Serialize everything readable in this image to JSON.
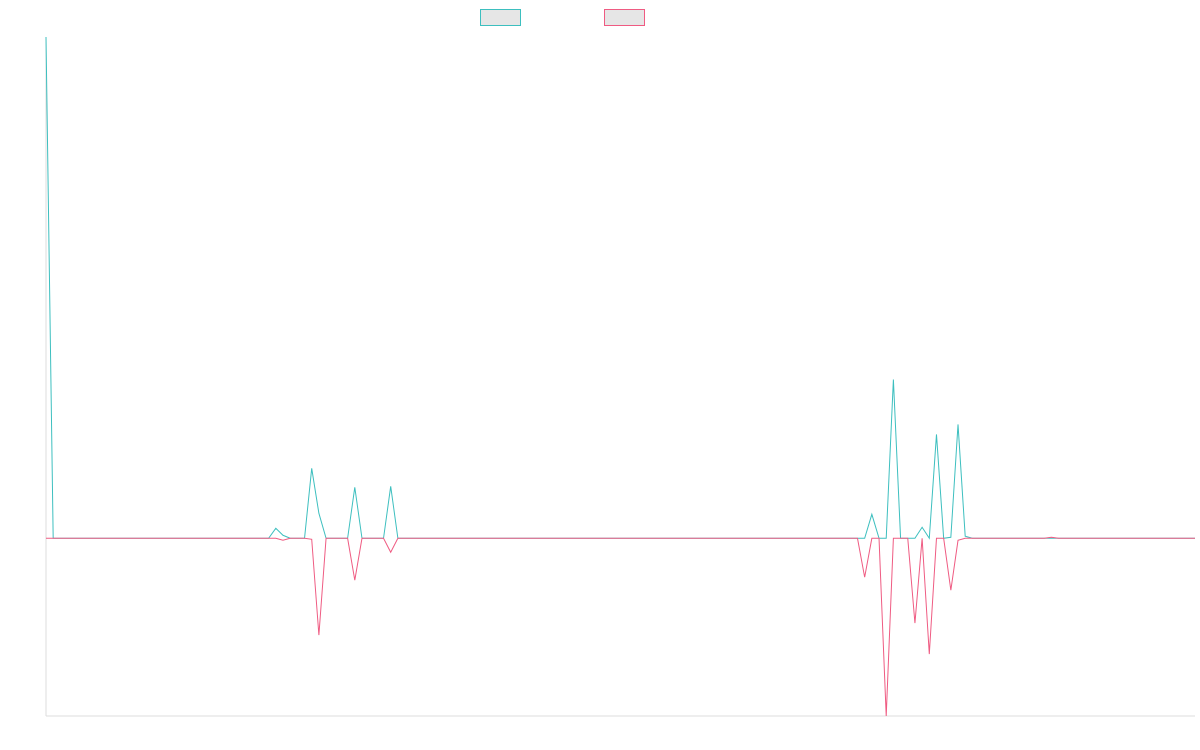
{
  "chart_data": {
    "type": "line",
    "title": "",
    "xlabel": "",
    "ylabel": "",
    "grid": false,
    "legend_position": "top-center",
    "ylim": [
      -178,
      502
    ],
    "x": [
      0,
      1,
      2,
      3,
      4,
      5,
      6,
      7,
      8,
      9,
      10,
      11,
      12,
      13,
      14,
      15,
      16,
      17,
      18,
      19,
      20,
      21,
      22,
      23,
      24,
      25,
      26,
      27,
      28,
      29,
      30,
      31,
      32,
      33,
      34,
      35,
      36,
      37,
      38,
      39,
      40,
      41,
      42,
      43,
      44,
      45,
      46,
      47,
      48,
      49,
      50,
      51,
      52,
      53,
      54,
      55,
      56,
      57,
      58,
      59,
      60,
      61,
      62,
      63,
      64,
      65,
      66,
      67,
      68,
      69,
      70,
      71,
      72,
      73,
      74,
      75,
      76,
      77,
      78,
      79,
      80,
      81,
      82,
      83,
      84,
      85,
      86,
      87,
      88,
      89,
      90,
      91,
      92,
      93,
      94,
      95,
      96,
      97,
      98,
      99,
      100,
      101,
      102,
      103,
      104,
      105,
      106,
      107,
      108,
      109,
      110,
      111,
      112,
      113,
      114,
      115,
      116,
      117,
      118,
      119,
      120,
      121,
      122,
      123,
      124,
      125,
      126,
      127,
      128,
      129,
      130,
      131,
      132,
      133,
      134,
      135,
      136,
      137,
      138,
      139,
      140,
      141,
      142,
      143,
      144,
      145,
      146,
      147,
      148,
      149,
      150,
      151,
      152,
      153,
      154,
      155,
      156,
      157,
      158,
      159,
      160
    ],
    "series": [
      {
        "color": "#3dbfbf",
        "values": [
          502,
          0,
          0,
          0,
          0,
          0,
          0,
          0,
          0,
          0,
          0,
          0,
          0,
          0,
          0,
          0,
          0,
          0,
          0,
          0,
          0,
          0,
          0,
          0,
          0,
          0,
          0,
          0,
          0,
          0,
          0,
          0,
          10,
          3,
          0,
          0,
          0,
          70,
          25,
          0,
          0,
          0,
          0,
          51,
          0,
          0,
          0,
          0,
          52,
          0,
          0,
          0,
          0,
          0,
          0,
          0,
          0,
          0,
          0,
          0,
          0,
          0,
          0,
          0,
          0,
          0,
          0,
          0,
          0,
          0,
          0,
          0,
          0,
          0,
          0,
          0,
          0,
          0,
          0,
          0,
          0,
          0,
          0,
          0,
          0,
          0,
          0,
          0,
          0,
          0,
          0,
          0,
          0,
          0,
          0,
          0,
          0,
          0,
          0,
          0,
          0,
          0,
          0,
          0,
          0,
          0,
          0,
          0,
          0,
          0,
          0,
          0,
          0,
          0,
          0,
          24,
          0,
          0,
          159,
          0,
          0,
          0,
          11,
          0,
          104,
          0,
          1,
          114,
          2,
          0,
          0,
          0,
          0,
          0,
          0,
          0,
          0,
          0,
          0,
          0,
          0,
          0,
          0,
          0,
          0,
          0,
          0,
          0,
          0,
          0,
          0,
          0,
          0,
          0,
          0,
          0,
          0,
          0,
          0,
          0,
          0
        ]
      },
      {
        "color": "#ef5b82",
        "values": [
          0,
          0,
          0,
          0,
          0,
          0,
          0,
          0,
          0,
          0,
          0,
          0,
          0,
          0,
          0,
          0,
          0,
          0,
          0,
          0,
          0,
          0,
          0,
          0,
          0,
          0,
          0,
          0,
          0,
          0,
          0,
          0,
          0,
          -2,
          0,
          0,
          0,
          -1,
          -97,
          0,
          0,
          0,
          0,
          -42,
          0,
          0,
          0,
          0,
          -14,
          0,
          0,
          0,
          0,
          0,
          0,
          0,
          0,
          0,
          0,
          0,
          0,
          0,
          0,
          0,
          0,
          0,
          0,
          0,
          0,
          0,
          0,
          0,
          0,
          0,
          0,
          0,
          0,
          0,
          0,
          0,
          0,
          0,
          0,
          0,
          0,
          0,
          0,
          0,
          0,
          0,
          0,
          0,
          0,
          0,
          0,
          0,
          0,
          0,
          0,
          0,
          0,
          0,
          0,
          0,
          0,
          0,
          0,
          0,
          0,
          0,
          0,
          0,
          0,
          0,
          -39,
          0,
          0,
          -178,
          0,
          0,
          0,
          -85,
          0,
          -116,
          0,
          0,
          -52,
          -2,
          0,
          0,
          0,
          0,
          0,
          0,
          0,
          0,
          0,
          0,
          0,
          0,
          1,
          0,
          0,
          0,
          0,
          0,
          0,
          0,
          0,
          0,
          0,
          0,
          0,
          0,
          0,
          0,
          0,
          0,
          0,
          0,
          0
        ]
      }
    ]
  }
}
